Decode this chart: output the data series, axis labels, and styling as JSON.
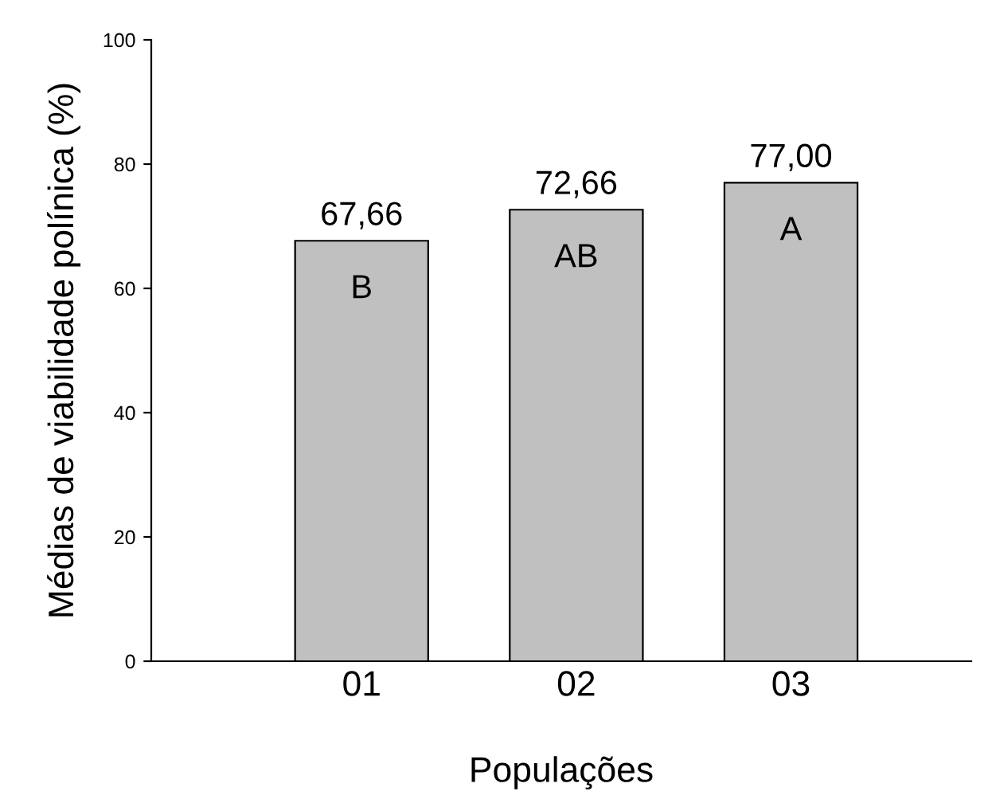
{
  "chart_data": {
    "type": "bar",
    "xlabel": "Populações",
    "ylabel": "Médias de viabilidade polínica (%)",
    "categories": [
      "01",
      "02",
      "03"
    ],
    "values": [
      67.66,
      72.66,
      77.0
    ],
    "value_labels": [
      "67,66",
      "72,66",
      "77,00"
    ],
    "color": "#c0c0c0",
    "ylim": [
      0,
      100
    ],
    "yticks": [
      0,
      20,
      40,
      60,
      80,
      100
    ],
    "grid": false,
    "legend": false,
    "annotations": [
      "B",
      "AB",
      "A"
    ]
  }
}
